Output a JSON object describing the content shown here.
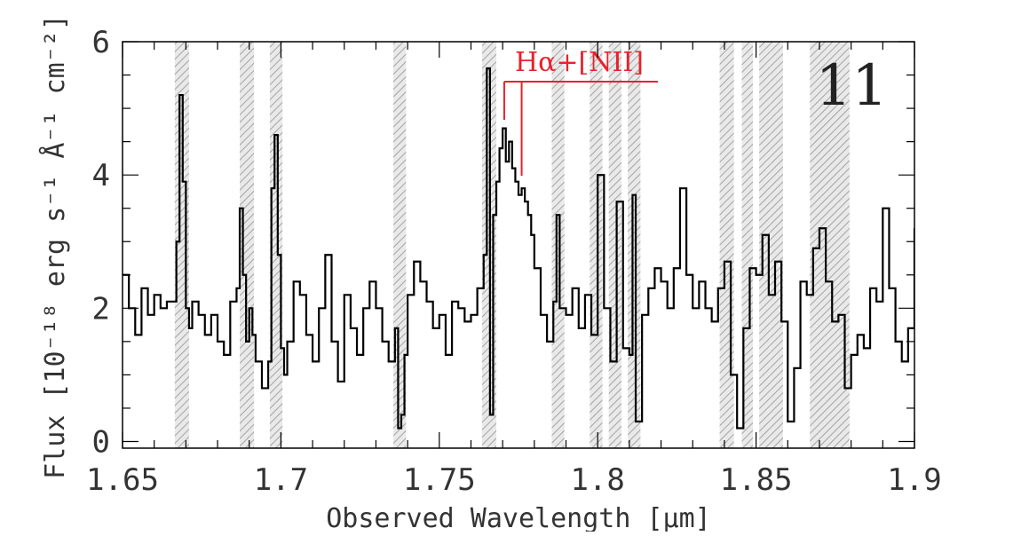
{
  "chart_data": {
    "type": "line",
    "title": "",
    "xlabel": "Observed Wavelength [μm]",
    "ylabel": "Flux [10⁻¹⁸ erg s⁻¹ Å⁻¹ cm⁻²]",
    "xlim": [
      1.65,
      1.9
    ],
    "ylim": [
      -0.1,
      6.0
    ],
    "x_ticks": [
      {
        "value": 1.65,
        "label": "1.65"
      },
      {
        "value": 1.7,
        "label": "1.7"
      },
      {
        "value": 1.75,
        "label": "1.75"
      },
      {
        "value": 1.8,
        "label": "1.8"
      },
      {
        "value": 1.85,
        "label": "1.85"
      },
      {
        "value": 1.9,
        "label": "1.9"
      }
    ],
    "y_ticks": [
      {
        "value": 0,
        "label": "0"
      },
      {
        "value": 2,
        "label": "2"
      },
      {
        "value": 4,
        "label": "4"
      },
      {
        "value": 6,
        "label": "6"
      }
    ],
    "panel_label": "11",
    "annotation": {
      "label": "Hα+[NII]",
      "lines_um": [
        1.7705,
        1.776
      ],
      "color": "#e8222c"
    },
    "masked_regions": [
      [
        1.6665,
        1.671
      ],
      [
        1.687,
        1.6915
      ],
      [
        1.6965,
        1.7005
      ],
      [
        1.7355,
        1.7395
      ],
      [
        1.7635,
        1.768
      ],
      [
        1.7855,
        1.7895
      ],
      [
        1.7975,
        1.8015
      ],
      [
        1.8035,
        1.8075
      ],
      [
        1.8095,
        1.8135
      ],
      [
        1.8385,
        1.843
      ],
      [
        1.8455,
        1.849
      ],
      [
        1.851,
        1.8545
      ],
      [
        1.8545,
        1.8585
      ],
      [
        1.867,
        1.8795
      ]
    ],
    "series": [
      {
        "color": "#000000",
        "x": [
          1.65,
          1.652,
          1.654,
          1.656,
          1.658,
          1.66,
          1.662,
          1.664,
          1.666,
          1.667,
          1.668,
          1.669,
          1.67,
          1.671,
          1.672,
          1.674,
          1.676,
          1.678,
          1.68,
          1.682,
          1.684,
          1.686,
          1.687,
          1.688,
          1.689,
          1.69,
          1.691,
          1.692,
          1.694,
          1.696,
          1.697,
          1.698,
          1.699,
          1.7,
          1.701,
          1.702,
          1.704,
          1.706,
          1.708,
          1.71,
          1.712,
          1.714,
          1.716,
          1.718,
          1.72,
          1.722,
          1.724,
          1.726,
          1.728,
          1.73,
          1.732,
          1.734,
          1.736,
          1.737,
          1.738,
          1.739,
          1.74,
          1.742,
          1.744,
          1.746,
          1.748,
          1.75,
          1.752,
          1.754,
          1.756,
          1.758,
          1.76,
          1.762,
          1.764,
          1.765,
          1.766,
          1.767,
          1.768,
          1.769,
          1.77,
          1.771,
          1.772,
          1.773,
          1.774,
          1.775,
          1.776,
          1.777,
          1.778,
          1.779,
          1.78,
          1.782,
          1.784,
          1.786,
          1.787,
          1.788,
          1.79,
          1.792,
          1.794,
          1.796,
          1.798,
          1.799,
          1.8,
          1.802,
          1.804,
          1.806,
          1.808,
          1.81,
          1.811,
          1.812,
          1.814,
          1.816,
          1.818,
          1.82,
          1.822,
          1.824,
          1.826,
          1.828,
          1.83,
          1.832,
          1.834,
          1.836,
          1.838,
          1.84,
          1.842,
          1.844,
          1.846,
          1.848,
          1.85,
          1.852,
          1.854,
          1.856,
          1.858,
          1.86,
          1.862,
          1.864,
          1.866,
          1.868,
          1.87,
          1.872,
          1.874,
          1.876,
          1.878,
          1.88,
          1.882,
          1.884,
          1.886,
          1.888,
          1.89,
          1.892,
          1.894,
          1.896,
          1.898,
          1.9
        ],
        "y": [
          2.5,
          2.0,
          1.6,
          2.3,
          1.9,
          2.2,
          2.0,
          2.1,
          2.1,
          3.0,
          5.2,
          3.9,
          2.0,
          1.7,
          2.1,
          1.9,
          1.6,
          1.9,
          1.5,
          1.3,
          2.1,
          2.3,
          3.5,
          2.5,
          1.5,
          2.0,
          1.6,
          1.2,
          0.8,
          1.2,
          3.8,
          4.6,
          2.8,
          1.4,
          1.0,
          1.5,
          2.4,
          2.2,
          1.6,
          1.2,
          2.0,
          2.8,
          1.5,
          0.9,
          2.2,
          1.7,
          1.3,
          2.0,
          2.4,
          2.0,
          1.5,
          1.2,
          1.7,
          0.2,
          0.4,
          1.3,
          2.2,
          2.7,
          2.4,
          2.1,
          1.7,
          1.9,
          1.3,
          2.1,
          2.0,
          1.8,
          1.9,
          2.3,
          2.8,
          5.6,
          0.4,
          3.4,
          3.9,
          4.4,
          4.7,
          4.2,
          4.5,
          4.1,
          3.9,
          3.7,
          3.8,
          3.6,
          3.4,
          3.1,
          2.6,
          1.9,
          1.5,
          2.1,
          3.4,
          2.0,
          1.9,
          2.3,
          1.7,
          2.2,
          1.6,
          1.6,
          4.0,
          2.0,
          1.2,
          3.6,
          1.4,
          1.3,
          3.7,
          0.3,
          1.9,
          2.3,
          2.6,
          2.4,
          2.0,
          2.6,
          3.8,
          2.5,
          2.0,
          2.4,
          2.0,
          1.8,
          2.3,
          2.7,
          1.0,
          0.2,
          1.7,
          2.6,
          2.5,
          3.1,
          2.2,
          2.7,
          1.8,
          0.3,
          1.1,
          2.4,
          2.2,
          2.9,
          3.2,
          2.4,
          1.8,
          1.9,
          0.8,
          1.3,
          1.6,
          1.4,
          2.3,
          2.1,
          3.5,
          2.3,
          1.5,
          1.2,
          1.7,
          3.2
        ]
      }
    ]
  }
}
